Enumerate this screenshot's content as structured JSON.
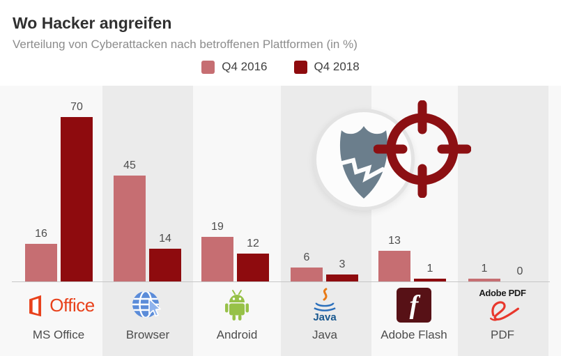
{
  "header": {
    "title": "Wo Hacker angreifen",
    "subtitle": "Verteilung von Cyberattacken nach betroffenen Plattformen (in %)"
  },
  "legend": {
    "items": [
      {
        "label": "Q4 2016",
        "color": "#c66e72"
      },
      {
        "label": "Q4 2018",
        "color": "#8e0b0e"
      }
    ]
  },
  "chart_data": {
    "type": "bar",
    "title": "Wo Hacker angreifen",
    "subtitle": "Verteilung von Cyberattacken nach betroffenen Plattformen (in %)",
    "categories": [
      "MS Office",
      "Browser",
      "Android",
      "Java",
      "Adobe Flash",
      "PDF"
    ],
    "series": [
      {
        "name": "Q4 2016",
        "color": "#c66e72",
        "values": [
          16,
          45,
          19,
          6,
          13,
          1
        ]
      },
      {
        "name": "Q4 2018",
        "color": "#8e0b0e",
        "values": [
          70,
          14,
          12,
          3,
          1,
          0
        ]
      }
    ],
    "ylim": [
      0,
      80
    ],
    "value_labels": true,
    "grid": false,
    "legend_position": "top-center",
    "striped_background_columns": [
      "Browser",
      "Java",
      "PDF"
    ]
  },
  "icons": {
    "office_text": "Office",
    "java_text": "Java",
    "adobe_pdf_text": "Adobe PDF"
  },
  "decoration": {
    "shield_color": "#6b7e8c",
    "target_color": "#8c1013"
  }
}
